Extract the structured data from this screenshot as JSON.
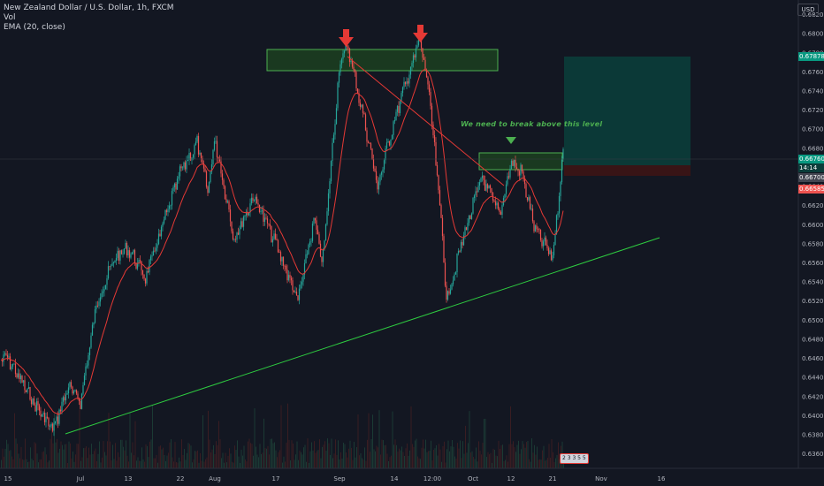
{
  "header": {
    "symbol": "New Zealand Dollar / U.S. Dollar, 1h, FXCM",
    "volume_label": "Vol",
    "ema_label": "EMA (20, close)",
    "currency": "USD"
  },
  "annotation": {
    "note": "We need to break above this level"
  },
  "badges": {
    "target": "0.67878",
    "price": "0.66760",
    "countdown": "14:14",
    "entry": "0.66700",
    "stop": "0.66585",
    "bottom_events": "2 3 3 5 5"
  },
  "colors": {
    "background": "#131722",
    "up_candle": "#26a69a",
    "down_candle": "#ef5350",
    "ema": "#e53935",
    "support_line": "#2ecc40",
    "zone_fill": "#1e4620",
    "zone_border": "#4caf50",
    "target_fill": "#0b3d3a",
    "stop_fill": "#3a1416",
    "arrow": "#e53935"
  },
  "chart_data": {
    "type": "candlestick",
    "title": "New Zealand Dollar / U.S. Dollar, 1h, FXCM",
    "y_range": [
      0.6355,
      0.6827
    ],
    "y_ticks": [
      "0.68200",
      "0.68000",
      "0.67800",
      "0.67600",
      "0.67400",
      "0.67200",
      "0.67000",
      "0.66800",
      "0.66600",
      "0.66400",
      "0.66200",
      "0.66000",
      "0.65800",
      "0.65600",
      "0.65400",
      "0.65200",
      "0.65000",
      "0.64800",
      "0.64600",
      "0.64400",
      "0.64200",
      "0.64000",
      "0.63800",
      "0.63600"
    ],
    "x_ticks": [
      "15",
      "Jul",
      "13",
      "22",
      "Aug",
      "17",
      "Sep",
      "14",
      "12:00",
      "Oct",
      "12",
      "21",
      "Nov",
      "16"
    ],
    "price_path": [
      {
        "x": "Jun 15",
        "y": 0.646
      },
      {
        "x": "Jun 20",
        "y": 0.6415
      },
      {
        "x": "Jun 24",
        "y": 0.6385
      },
      {
        "x": "Jun 28",
        "y": 0.643
      },
      {
        "x": "Jul 1",
        "y": 0.6415
      },
      {
        "x": "Jul 4",
        "y": 0.652
      },
      {
        "x": "Jul 9",
        "y": 0.6565
      },
      {
        "x": "Jul 13",
        "y": 0.6575
      },
      {
        "x": "Jul 17",
        "y": 0.6545
      },
      {
        "x": "Jul 22",
        "y": 0.6655
      },
      {
        "x": "Jul 26",
        "y": 0.6685
      },
      {
        "x": "Jul 30",
        "y": 0.6635
      },
      {
        "x": "Aug 3",
        "y": 0.669
      },
      {
        "x": "Aug 8",
        "y": 0.6585
      },
      {
        "x": "Aug 12",
        "y": 0.663
      },
      {
        "x": "Aug 17",
        "y": 0.658
      },
      {
        "x": "Aug 22",
        "y": 0.652
      },
      {
        "x": "Aug 26",
        "y": 0.6605
      },
      {
        "x": "Aug 29",
        "y": 0.656
      },
      {
        "x": "Sep 1",
        "y": 0.6768
      },
      {
        "x": "Sep 3",
        "y": 0.6788
      },
      {
        "x": "Sep 7",
        "y": 0.6705
      },
      {
        "x": "Sep 10",
        "y": 0.664
      },
      {
        "x": "Sep 14",
        "y": 0.671
      },
      {
        "x": "Sep 17",
        "y": 0.6795
      },
      {
        "x": "Sep 20",
        "y": 0.674
      },
      {
        "x": "Sep 24",
        "y": 0.6595
      },
      {
        "x": "Sep 27",
        "y": 0.652
      },
      {
        "x": "Oct 1",
        "y": 0.659
      },
      {
        "x": "Oct 4",
        "y": 0.665
      },
      {
        "x": "Oct 8",
        "y": 0.661
      },
      {
        "x": "Oct 12",
        "y": 0.6665
      },
      {
        "x": "Oct 15",
        "y": 0.6655
      },
      {
        "x": "Oct 18",
        "y": 0.6595
      },
      {
        "x": "Oct 21",
        "y": 0.6565
      },
      {
        "x": "Oct 23",
        "y": 0.6676
      }
    ],
    "levels": {
      "target": 0.67878,
      "last_price": 0.6676,
      "entry": 0.667,
      "stop": 0.66585
    }
  }
}
